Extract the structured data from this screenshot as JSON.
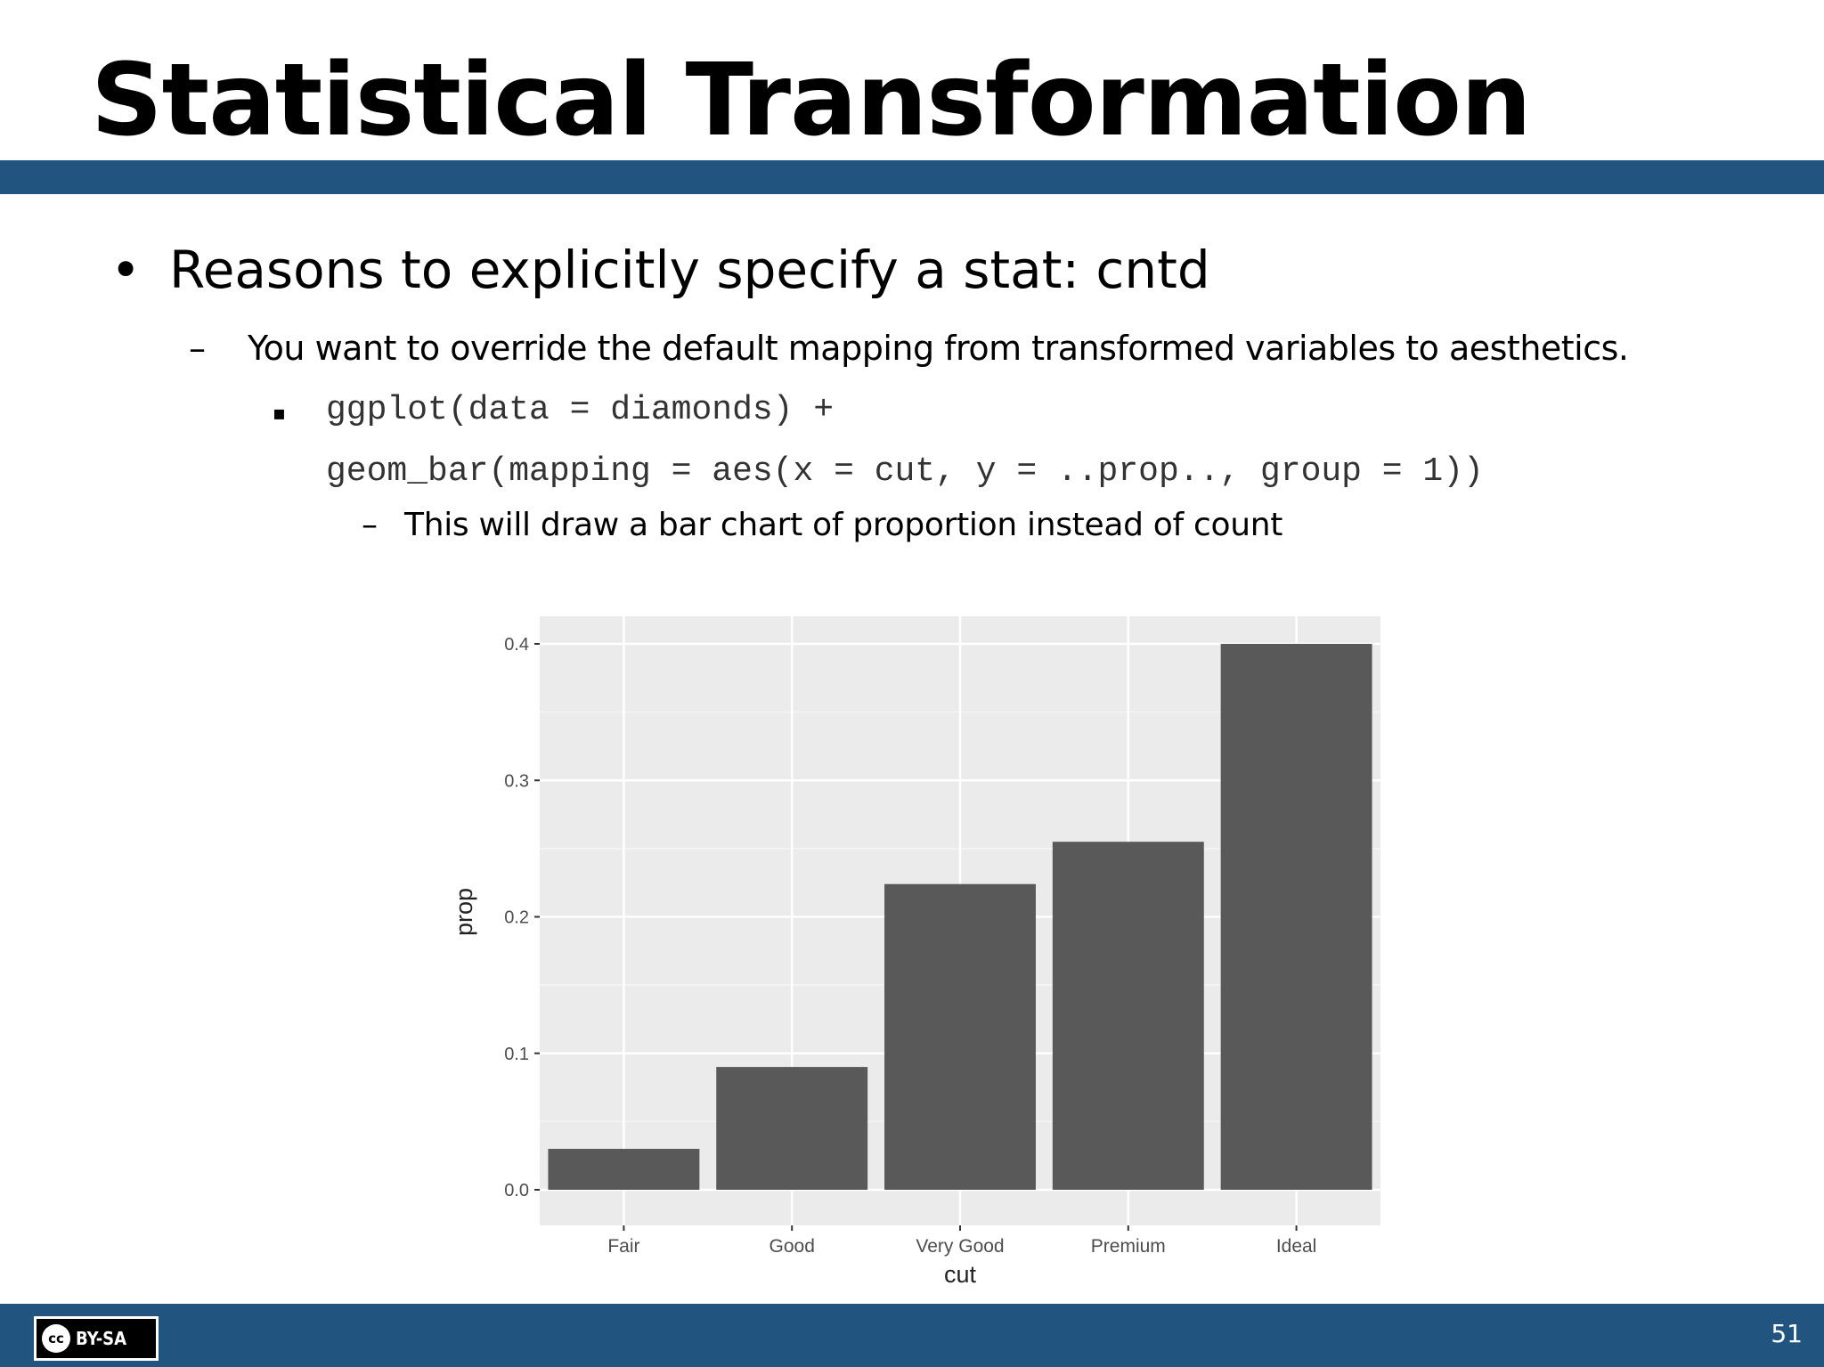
{
  "slide": {
    "title": "Statistical Transformation",
    "bullet_symbol": "•",
    "bullet": "Reasons to explicitly specify a stat: cntd",
    "dash_symbol": "–",
    "sub_bullet": "You want to override the default mapping from transformed variables to aesthetics.",
    "square_symbol": "▪",
    "code_line1": "ggplot(data = diamonds) +",
    "code_line2": "geom_bar(mapping = aes(x = cut, y = ..prop.., group = 1))",
    "note": "This will draw a bar chart of proportion instead of count",
    "page_number": "51",
    "license_circle": "cc",
    "license_text": "BY-SA"
  },
  "colors": {
    "accent_bar": "#21557f",
    "panel_bg": "#ebebeb",
    "bar_fill": "#595959",
    "grid_major": "#ffffff",
    "axis_text": "#4d4d4d"
  },
  "chart_data": {
    "type": "bar",
    "categories": [
      "Fair",
      "Good",
      "Very Good",
      "Premium",
      "Ideal"
    ],
    "values": [
      0.03,
      0.09,
      0.224,
      0.255,
      0.4
    ],
    "xlabel": "cut",
    "ylabel": "prop",
    "ylim": [
      0,
      0.4
    ],
    "yticks": [
      0.0,
      0.1,
      0.2,
      0.3,
      0.4
    ],
    "ytick_labels": [
      "0.0",
      "0.1",
      "0.2",
      "0.3",
      "0.4"
    ],
    "grid": true,
    "legend": "none"
  }
}
